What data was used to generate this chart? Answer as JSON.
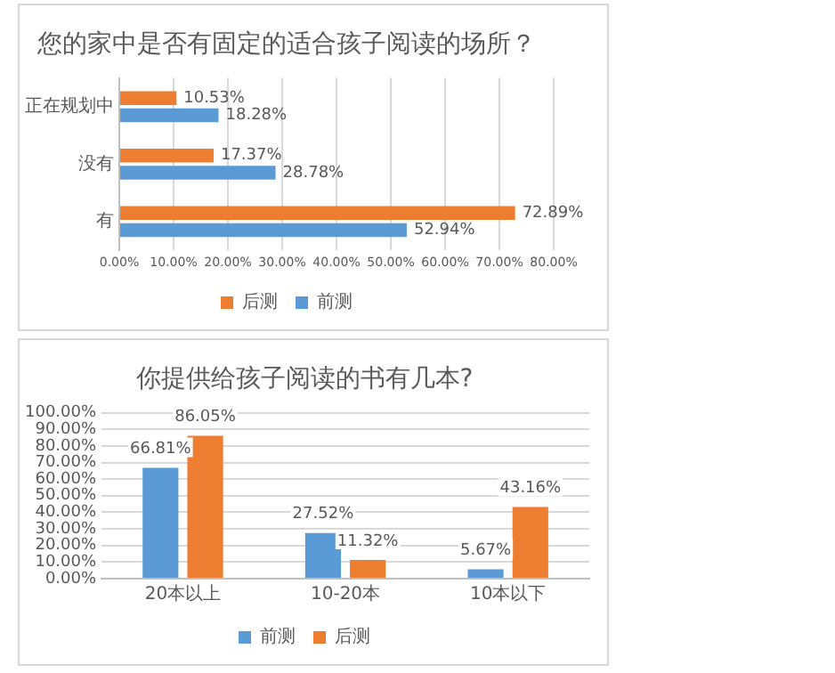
{
  "chart_data": [
    {
      "type": "bar",
      "orientation": "horizontal",
      "title": "您的家中是否有固定的适合孩子阅读的场所？",
      "categories": [
        "正在规划中",
        "没有",
        "有"
      ],
      "series": [
        {
          "name": "后测",
          "color": "#ed7d31",
          "values": [
            10.53,
            17.37,
            72.89
          ],
          "value_labels": [
            "10.53%",
            "17.37%",
            "72.89%"
          ]
        },
        {
          "name": "前测",
          "color": "#5b9bd5",
          "values": [
            18.28,
            28.78,
            52.94
          ],
          "value_labels": [
            "18.28%",
            "28.78%",
            "52.94%"
          ]
        }
      ],
      "xlim": [
        0,
        80
      ],
      "xticks": [
        {
          "value": 0,
          "label": "0.00%"
        },
        {
          "value": 10,
          "label": "10.00%"
        },
        {
          "value": 20,
          "label": "20.00%"
        },
        {
          "value": 30,
          "label": "30.00%"
        },
        {
          "value": 40,
          "label": "40.00%"
        },
        {
          "value": 50,
          "label": "50.00%"
        },
        {
          "value": 60,
          "label": "60.00%"
        },
        {
          "value": 70,
          "label": "70.00%"
        },
        {
          "value": 80,
          "label": "80.00%"
        }
      ],
      "grid": "x",
      "legend": "bottom"
    },
    {
      "type": "bar",
      "title": "你提供给孩子阅读的书有几本?",
      "categories": [
        "20本以上",
        "10-20本",
        "10本以下"
      ],
      "series": [
        {
          "name": "前测",
          "color": "#5b9bd5",
          "values": [
            66.81,
            27.52,
            5.67
          ],
          "value_labels": [
            "66.81%",
            "27.52%",
            "5.67%"
          ]
        },
        {
          "name": "后测",
          "color": "#ed7d31",
          "values": [
            86.05,
            11.32,
            43.16
          ],
          "value_labels": [
            "86.05%",
            "11.32%",
            "43.16%"
          ]
        }
      ],
      "ylim": [
        0,
        100
      ],
      "yticks": [
        {
          "value": 0,
          "label": "0.00%"
        },
        {
          "value": 10,
          "label": "10.00%"
        },
        {
          "value": 20,
          "label": "20.00%"
        },
        {
          "value": 30,
          "label": "30.00%"
        },
        {
          "value": 40,
          "label": "40.00%"
        },
        {
          "value": 50,
          "label": "50.00%"
        },
        {
          "value": 60,
          "label": "60.00%"
        },
        {
          "value": 70,
          "label": "70.00%"
        },
        {
          "value": 80,
          "label": "80.00%"
        },
        {
          "value": 90,
          "label": "90.00%"
        },
        {
          "value": 100,
          "label": "100.00%"
        }
      ],
      "grid": "y",
      "legend": "bottom"
    }
  ]
}
